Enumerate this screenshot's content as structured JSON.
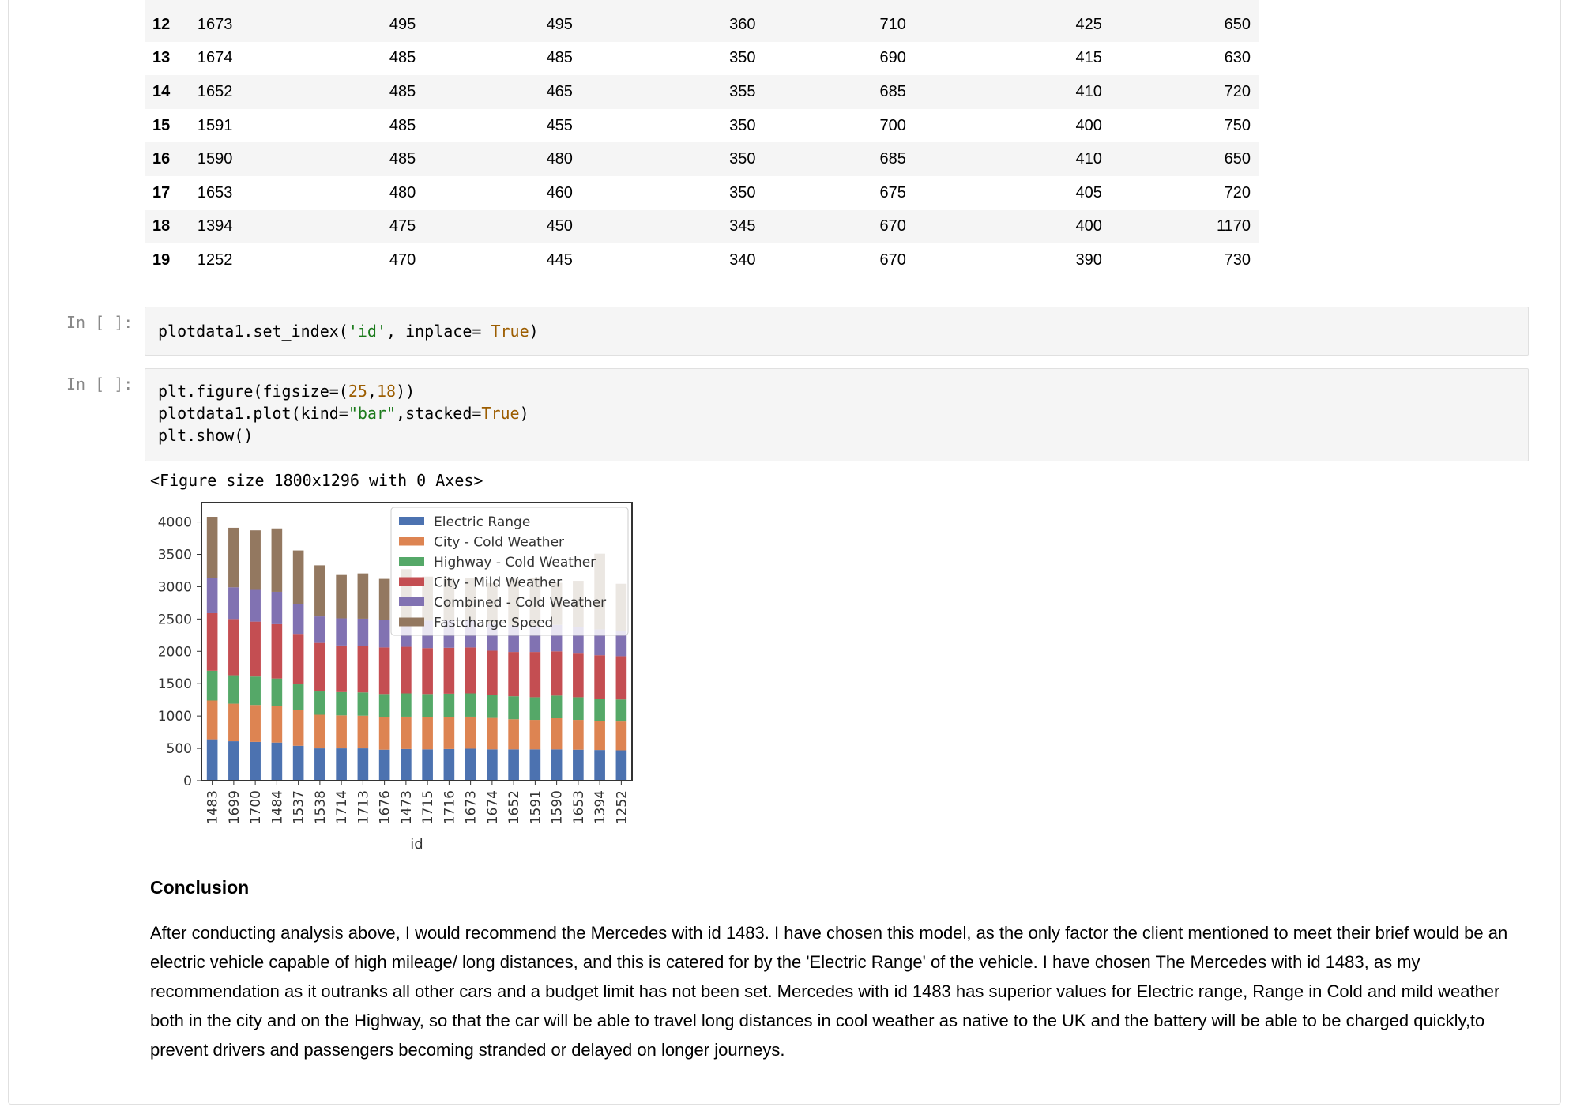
{
  "table": {
    "rows": [
      {
        "idx": "12",
        "cells": [
          "1673",
          "495",
          "495",
          "360",
          "710",
          "425",
          "650"
        ]
      },
      {
        "idx": "13",
        "cells": [
          "1674",
          "485",
          "485",
          "350",
          "690",
          "415",
          "630"
        ]
      },
      {
        "idx": "14",
        "cells": [
          "1652",
          "485",
          "465",
          "355",
          "685",
          "410",
          "720"
        ]
      },
      {
        "idx": "15",
        "cells": [
          "1591",
          "485",
          "455",
          "350",
          "700",
          "400",
          "750"
        ]
      },
      {
        "idx": "16",
        "cells": [
          "1590",
          "485",
          "480",
          "350",
          "685",
          "410",
          "650"
        ]
      },
      {
        "idx": "17",
        "cells": [
          "1653",
          "480",
          "460",
          "350",
          "675",
          "405",
          "720"
        ]
      },
      {
        "idx": "18",
        "cells": [
          "1394",
          "475",
          "450",
          "345",
          "670",
          "400",
          "1170"
        ]
      },
      {
        "idx": "19",
        "cells": [
          "1252",
          "470",
          "445",
          "340",
          "670",
          "390",
          "730"
        ]
      }
    ]
  },
  "cells": [
    {
      "prompt": "In [ ]:",
      "code_pre": "plotdata1.set_index(",
      "code_str": "'id'",
      "code_mid": ", inplace= ",
      "code_kw": "True",
      "code_post": ")"
    },
    {
      "prompt": "In [ ]:"
    }
  ],
  "cell2": {
    "line1_pre": "plt.figure(figsize=(",
    "line1_n1": "25",
    "line1_c": ",",
    "line1_n2": "18",
    "line1_post": "))",
    "line2_pre": "plotdata1.plot(kind=",
    "line2_str": "\"bar\"",
    "line2_mid": ",stacked=",
    "line2_kw": "True",
    "line2_post": ")",
    "line3": "plt.show()"
  },
  "output_text": "<Figure size 1800x1296 with 0 Axes>",
  "chart_data": {
    "type": "bar",
    "stacked": true,
    "xlabel": "id",
    "ylabel": "",
    "ylim": [
      0,
      4300
    ],
    "yticks": [
      0,
      500,
      1000,
      1500,
      2000,
      2500,
      3000,
      3500,
      4000
    ],
    "legend_position": "top-right",
    "categories": [
      "1483",
      "1699",
      "1700",
      "1484",
      "1537",
      "1538",
      "1714",
      "1713",
      "1676",
      "1473",
      "1715",
      "1716",
      "1673",
      "1674",
      "1652",
      "1591",
      "1590",
      "1653",
      "1394",
      "1252"
    ],
    "series": [
      {
        "name": "Electric Range",
        "color": "#4c72b0",
        "values": [
          640,
          610,
          600,
          590,
          540,
          500,
          500,
          500,
          480,
          490,
          485,
          490,
          495,
          485,
          485,
          485,
          485,
          480,
          475,
          470
        ]
      },
      {
        "name": "City - Cold Weather",
        "color": "#dd8452",
        "values": [
          600,
          580,
          570,
          560,
          550,
          520,
          510,
          505,
          500,
          500,
          495,
          495,
          495,
          485,
          465,
          455,
          480,
          460,
          450,
          445
        ]
      },
      {
        "name": "Highway - Cold Weather",
        "color": "#55a868",
        "values": [
          460,
          440,
          440,
          430,
          400,
          360,
          360,
          360,
          360,
          360,
          360,
          360,
          360,
          350,
          355,
          350,
          350,
          350,
          345,
          340
        ]
      },
      {
        "name": "City - Mild Weather",
        "color": "#c44e52",
        "values": [
          890,
          870,
          850,
          840,
          780,
          750,
          720,
          720,
          720,
          720,
          710,
          710,
          710,
          690,
          685,
          700,
          685,
          675,
          670,
          670
        ]
      },
      {
        "name": "Combined - Cold Weather",
        "color": "#8172b2",
        "values": [
          540,
          490,
          490,
          500,
          460,
          410,
          420,
          420,
          420,
          420,
          425,
          425,
          425,
          415,
          410,
          400,
          410,
          405,
          400,
          390
        ]
      },
      {
        "name": "Fastcharge Speed",
        "color": "#937860",
        "values": [
          950,
          920,
          920,
          980,
          830,
          790,
          670,
          700,
          640,
          780,
          680,
          660,
          650,
          630,
          720,
          750,
          650,
          720,
          1170,
          730
        ]
      }
    ]
  },
  "conclusion": {
    "title": "Conclusion",
    "body": "After conducting analysis above, I would recommend the Mercedes with id 1483. I have chosen this model, as the only factor the client mentioned to meet their brief would be an electric vehicle capable of high mileage/ long distances, and this is catered for by the 'Electric Range' of the vehicle. I have chosen The Mercedes with id 1483, as my recommendation as it outranks all other cars and a budget limit has not been set. Mercedes with id 1483 has superior values for Electric range, Range in Cold and mild weather both in the city and on the Highway, so that the car will be able to travel long distances in cool weather as native to the UK and the battery will be able to be charged quickly,to prevent drivers and passengers becoming stranded or delayed on longer journeys."
  }
}
